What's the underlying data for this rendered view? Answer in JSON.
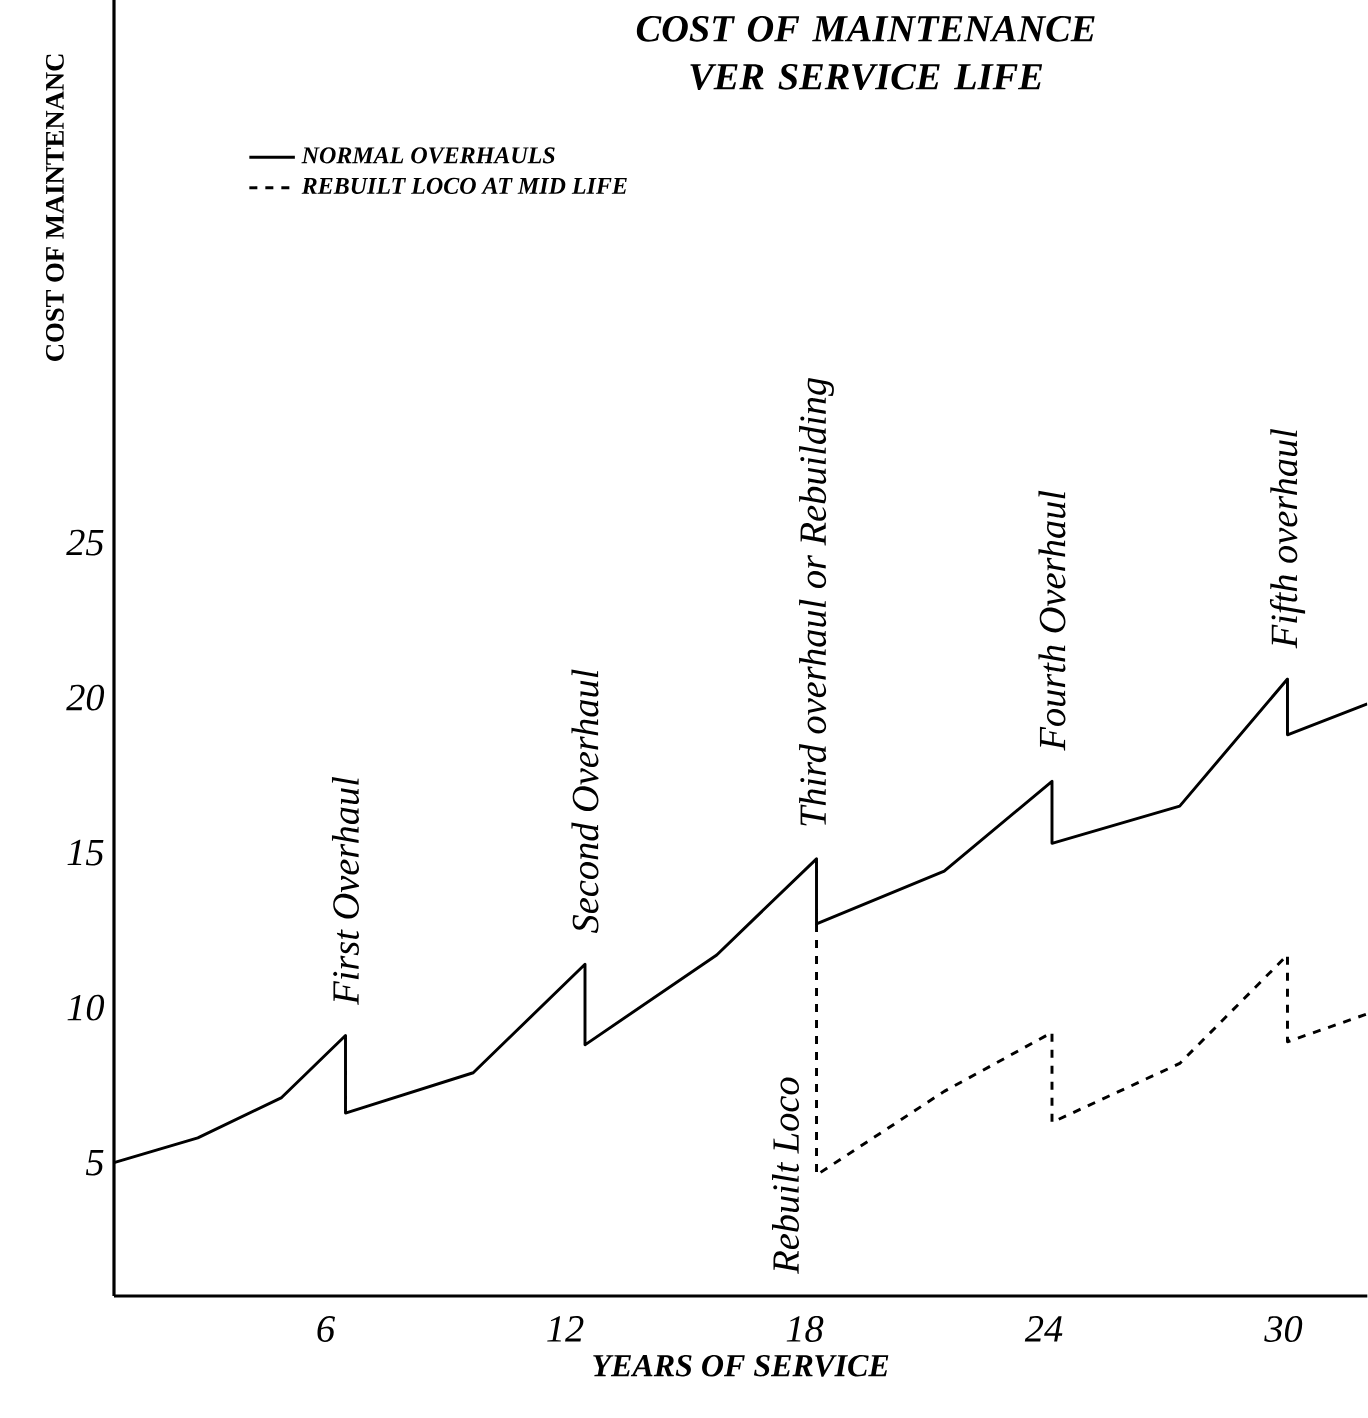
{
  "chart_data": {
    "type": "line",
    "title": "COST OF MAINTENANCE VER SERVICE LIFE",
    "xlabel": "YEARS OF SERVICE",
    "ylabel": "COST OF MAINTENANC",
    "xlim": [
      0.7,
      32.1
    ],
    "ylim": [
      0.7,
      42.5
    ],
    "xticks": [
      6,
      12,
      18,
      24,
      30
    ],
    "yticks": [
      5,
      10,
      15,
      20,
      25
    ],
    "series": [
      {
        "name": "NORMAL OVERHAULS",
        "color": "#000000",
        "line_style": "solid",
        "x": [
          0.7,
          2.8,
          4.9,
          6.5,
          6.5,
          9.7,
          12.5,
          12.5,
          15.8,
          18.3,
          18.3,
          21.5,
          24.2,
          24.2,
          27.4,
          30.1,
          30.1,
          32.1
        ],
        "values": [
          5.0,
          5.8,
          7.1,
          9.1,
          6.6,
          7.9,
          11.4,
          8.8,
          11.7,
          14.8,
          12.7,
          14.4,
          17.3,
          15.3,
          16.5,
          20.6,
          18.8,
          19.8
        ]
      },
      {
        "name": "REBUILT LOCO AT MID LIFE",
        "color": "#000000",
        "line_style": "dashed",
        "x": [
          18.3,
          18.3,
          21.5,
          24.2,
          24.2,
          27.4,
          30.1,
          30.1,
          32.1
        ],
        "values": [
          12.7,
          4.6,
          7.3,
          9.2,
          6.3,
          8.2,
          11.7,
          8.9,
          9.8
        ]
      }
    ],
    "annotations": [
      {
        "text": "First Overhaul",
        "x": 6.5,
        "y": 9.1
      },
      {
        "text": "Second Overhaul",
        "x": 12.5,
        "y": 11.4
      },
      {
        "text": "Third overhaul or Rebuilding",
        "x": 18.3,
        "y": 14.8
      },
      {
        "text": "Fourth Overhaul",
        "x": 24.2,
        "y": 17.3
      },
      {
        "text": "Fifth overhaul",
        "x": 30.1,
        "y": 20.6
      },
      {
        "text": "Rebuilt Loco",
        "x": 18.3,
        "y": 4.6
      }
    ],
    "legend": "top left",
    "marker": "none",
    "grid": false
  }
}
